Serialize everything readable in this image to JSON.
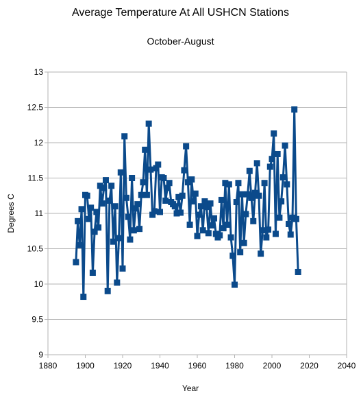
{
  "chart_data": {
    "type": "line",
    "title": "Average Temperature At All USHCN Stations",
    "subtitle": "October-August",
    "xlabel": "Year",
    "ylabel": "Degrees C",
    "xlim": [
      1880,
      2040
    ],
    "ylim": [
      9,
      13
    ],
    "x_ticks": [
      1880,
      1900,
      1920,
      1940,
      1960,
      1980,
      2000,
      2020,
      2040
    ],
    "y_ticks": [
      9,
      9.5,
      10,
      10.5,
      11,
      11.5,
      12,
      12.5,
      13
    ],
    "y_tick_labels": [
      "9",
      "9.5",
      "10",
      "10.5",
      "11",
      "11.5",
      "12",
      "12.5",
      "13"
    ],
    "grid": "horizontal",
    "legend": "none",
    "color": "#0b4a8b",
    "marker": "square",
    "series": [
      {
        "x": [
          1895,
          1896,
          1897,
          1898,
          1899,
          1900,
          1901,
          1902,
          1903,
          1904,
          1905,
          1906,
          1907,
          1908,
          1909,
          1910,
          1911,
          1912,
          1913,
          1914,
          1915,
          1916,
          1917,
          1918,
          1919,
          1920,
          1921,
          1922,
          1923,
          1924,
          1925,
          1926,
          1927,
          1928,
          1929,
          1930,
          1931,
          1932,
          1933,
          1934,
          1935,
          1936,
          1937,
          1938,
          1939,
          1940,
          1941,
          1942,
          1943,
          1944,
          1945,
          1946,
          1947,
          1948,
          1949,
          1950,
          1951,
          1952,
          1953,
          1954,
          1955,
          1956,
          1957,
          1958,
          1959,
          1960,
          1961,
          1962,
          1963,
          1964,
          1965,
          1966,
          1967,
          1968,
          1969,
          1970,
          1971,
          1972,
          1973,
          1974,
          1975,
          1976,
          1977,
          1978,
          1979,
          1980,
          1981,
          1982,
          1983,
          1984,
          1985,
          1986,
          1987,
          1988,
          1989,
          1990,
          1991,
          1992,
          1993,
          1994,
          1995,
          1996,
          1997,
          1998,
          1999,
          2000,
          2001,
          2002,
          2003,
          2004,
          2005,
          2006,
          2007,
          2008,
          2009,
          2010,
          2011,
          2012,
          2013,
          2014
        ],
        "y": [
          10.31,
          10.89,
          10.55,
          11.06,
          9.82,
          11.26,
          11.25,
          10.92,
          11.08,
          10.16,
          10.74,
          11.02,
          10.8,
          11.39,
          11.14,
          11.36,
          11.47,
          9.9,
          11.18,
          11.39,
          10.6,
          11.1,
          10.02,
          10.65,
          11.58,
          10.22,
          12.09,
          11.22,
          10.95,
          10.63,
          11.5,
          10.76,
          11.07,
          11.13,
          10.78,
          11.26,
          11.44,
          11.9,
          11.26,
          12.27,
          11.62,
          10.98,
          11.03,
          11.64,
          11.69,
          11.02,
          11.51,
          11.5,
          11.18,
          11.36,
          11.43,
          11.16,
          11.13,
          11.1,
          11.0,
          11.23,
          11.01,
          11.25,
          11.61,
          11.95,
          11.44,
          10.84,
          11.48,
          11.17,
          11.28,
          10.68,
          10.98,
          11.1,
          10.76,
          11.17,
          11.09,
          10.72,
          11.14,
          10.83,
          10.93,
          10.71,
          10.66,
          10.69,
          11.19,
          10.79,
          11.43,
          10.84,
          11.41,
          10.66,
          10.4,
          9.99,
          11.16,
          11.43,
          10.45,
          11.27,
          10.58,
          10.99,
          11.27,
          11.6,
          11.22,
          10.89,
          11.29,
          11.71,
          11.25,
          10.43,
          10.76,
          11.43,
          10.66,
          10.77,
          11.66,
          11.77,
          12.13,
          10.71,
          11.84,
          10.94,
          11.17,
          11.51,
          11.96,
          11.41,
          10.85,
          10.7,
          10.94,
          12.47,
          10.92,
          10.17
        ]
      }
    ]
  }
}
